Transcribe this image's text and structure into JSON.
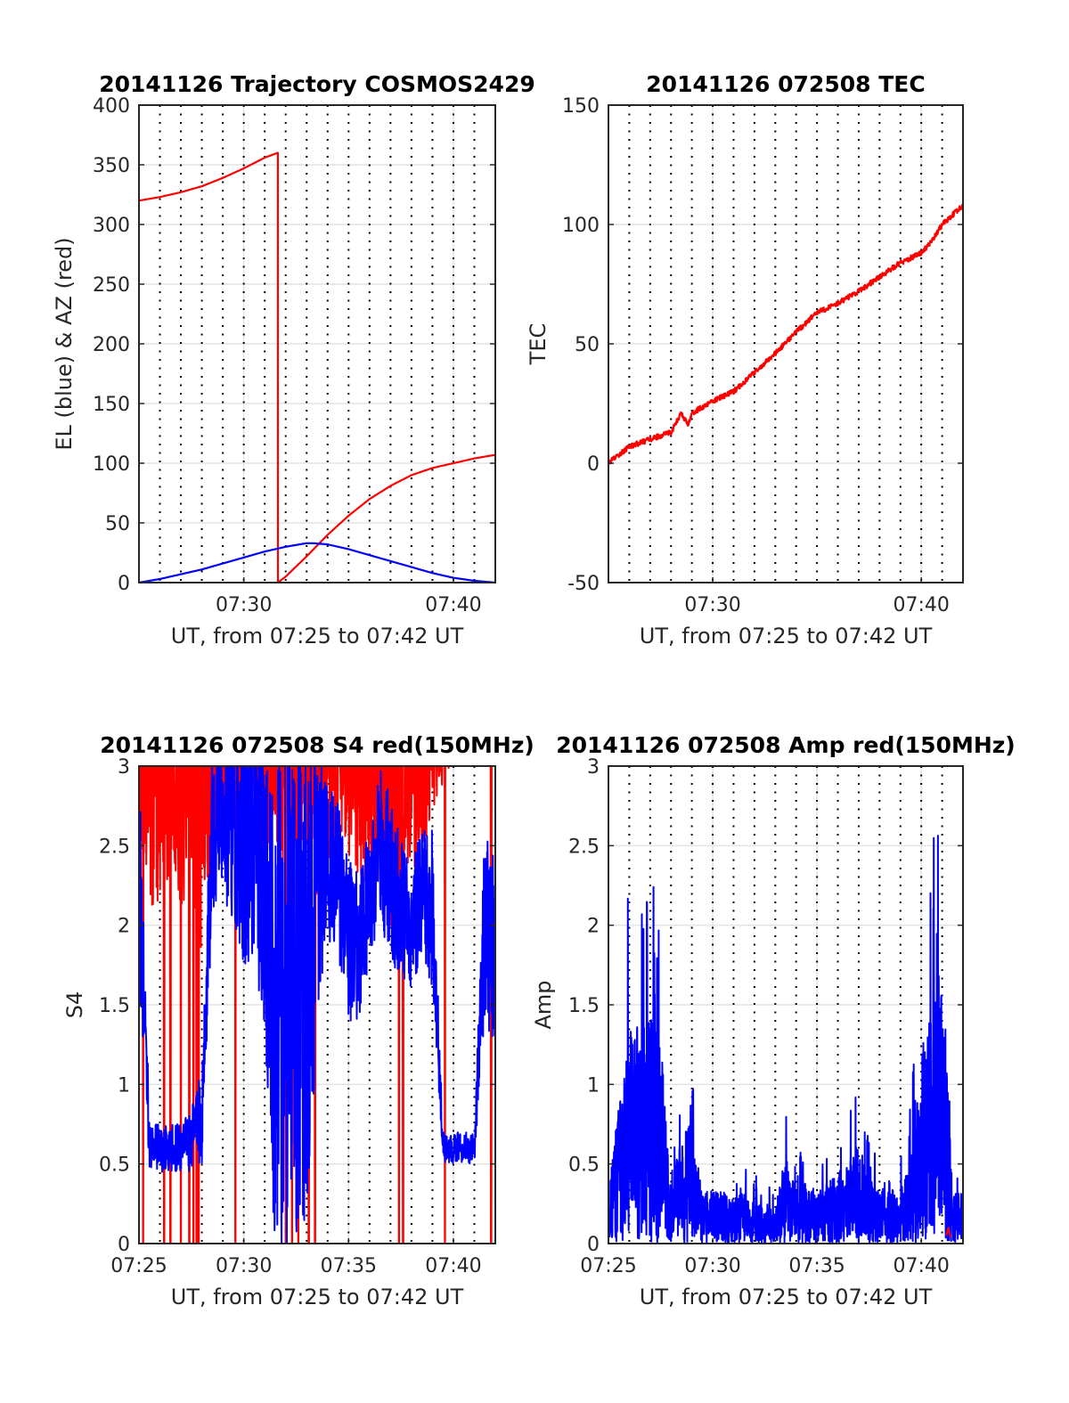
{
  "chart_data": [
    {
      "type": "line",
      "title": "20141126 Trajectory COSMOS2429",
      "xlabel": "UT, from 07:25 to 07:42 UT",
      "ylabel": "EL (blue) & AZ (red)",
      "xlim_minutes": [
        0,
        17
      ],
      "ylim": [
        0,
        400
      ],
      "xticks": [
        {
          "t": 5,
          "label": "07:30"
        },
        {
          "t": 15,
          "label": "07:40"
        }
      ],
      "yticks": [
        0,
        50,
        100,
        150,
        200,
        250,
        300,
        350,
        400
      ],
      "minute_dotted_grid": true,
      "series": [
        {
          "name": "AZ",
          "color": "#ff0000",
          "t": [
            0,
            1,
            2,
            3,
            4,
            5,
            6,
            6.62,
            6.63,
            7,
            8,
            9,
            10,
            11,
            12,
            13,
            14,
            15,
            16,
            17
          ],
          "values": [
            320,
            323,
            327,
            332,
            339,
            347,
            356,
            360,
            0,
            5,
            22,
            40,
            56,
            70,
            81,
            90,
            96,
            100,
            104,
            107
          ]
        },
        {
          "name": "EL",
          "color": "#0000ff",
          "t": [
            0,
            1,
            2,
            3,
            4,
            5,
            6,
            7,
            8,
            8.3,
            9,
            10,
            11,
            12,
            13,
            14,
            15,
            16,
            17
          ],
          "values": [
            0,
            3,
            7,
            11,
            16,
            21,
            26,
            30,
            33,
            33,
            32,
            28,
            23,
            18,
            13,
            8,
            4,
            1.5,
            0
          ]
        }
      ]
    },
    {
      "type": "line",
      "title": "20141126 072508 TEC",
      "xlabel": "UT, from 07:25 to 07:42 UT",
      "ylabel": "TEC",
      "xlim_minutes": [
        0,
        17
      ],
      "ylim": [
        -50,
        150
      ],
      "xticks": [
        {
          "t": 5,
          "label": "07:30"
        },
        {
          "t": 15,
          "label": "07:40"
        }
      ],
      "yticks": [
        -50,
        0,
        50,
        100,
        150
      ],
      "minute_dotted_grid": true,
      "series": [
        {
          "name": "TEC",
          "color": "#ff0000",
          "t": [
            0,
            1,
            2,
            3,
            3.5,
            3.8,
            4,
            5,
            6,
            7,
            8,
            9,
            10,
            11,
            12,
            13,
            14,
            15,
            15.5,
            16,
            17
          ],
          "values": [
            0,
            7,
            10,
            13,
            21,
            16,
            21,
            26,
            30,
            38,
            46,
            55,
            63,
            67,
            72,
            78,
            84,
            88,
            93,
            100,
            108
          ]
        }
      ]
    },
    {
      "type": "line",
      "title": "20141126 072508 S4 red(150MHz)",
      "xlabel": "UT, from 07:25 to 07:42 UT",
      "ylabel": "S4",
      "xlim_minutes": [
        0,
        17
      ],
      "ylim": [
        0,
        3
      ],
      "xticks": [
        {
          "t": 0,
          "label": "07:25"
        },
        {
          "t": 5,
          "label": "07:30"
        },
        {
          "t": 10,
          "label": "07:35"
        },
        {
          "t": 15,
          "label": "07:40"
        }
      ],
      "yticks": [
        0,
        0.5,
        1,
        1.5,
        2,
        2.5,
        3
      ],
      "minute_dotted_grid": true,
      "sample_step_minutes": 0.5,
      "series": [
        {
          "name": "red",
          "color": "#ff0000",
          "level": [
            3.3,
            3.0,
            2.9,
            3.2,
            3.0,
            3.1,
            2.6,
            3.2,
            3.0,
            3.3,
            3.2,
            3.4,
            3.1,
            3.2,
            3.1,
            3.3,
            3.0,
            2.9,
            3.2,
            3.4,
            3.3,
            3.2,
            3.0,
            3.1,
            2.9,
            2.8,
            3.2,
            3.0,
            3.3,
            3.4,
            3.6,
            3.5,
            3.6,
            3.7,
            3.6
          ],
          "spread": [
            0.8,
            0.9,
            1.0,
            0.8,
            0.9,
            0.9,
            0.8,
            0.7,
            0.6,
            0.6,
            0.6,
            0.6,
            0.7,
            0.7,
            0.8,
            0.8,
            0.8,
            0.8,
            0.8,
            0.9,
            0.9,
            0.9,
            0.8,
            0.8,
            0.9,
            0.9,
            0.8,
            0.8,
            0.6,
            0.6,
            0.5,
            0.5,
            0.5,
            0.6,
            0.6
          ],
          "dropouts": [
            0.2,
            1.2,
            1.5,
            2.0,
            2.4,
            2.6,
            2.75,
            2.85,
            4.6,
            7.0,
            7.3,
            7.6,
            8.1,
            8.4,
            12.4,
            12.6,
            14.6,
            16.8
          ]
        },
        {
          "name": "blue",
          "color": "#0000ff",
          "level": [
            2.4,
            0.6,
            0.6,
            0.6,
            0.6,
            0.65,
            0.8,
            2.6,
            2.7,
            2.6,
            2.5,
            2.6,
            2.2,
            1.5,
            1.5,
            1.5,
            1.8,
            2.3,
            2.4,
            2.3,
            1.9,
            1.9,
            2.2,
            2.5,
            2.3,
            2.1,
            2.0,
            2.2,
            2.1,
            0.6,
            0.6,
            0.6,
            0.6,
            2.0,
            1.8
          ],
          "spread": [
            0.8,
            0.15,
            0.15,
            0.15,
            0.15,
            0.2,
            0.3,
            0.5,
            0.5,
            0.6,
            0.8,
            0.8,
            0.9,
            1.6,
            1.6,
            1.6,
            1.6,
            1.0,
            0.5,
            0.5,
            0.5,
            0.5,
            0.4,
            0.5,
            0.5,
            0.5,
            0.4,
            0.4,
            0.5,
            0.1,
            0.1,
            0.1,
            0.1,
            0.6,
            0.6
          ]
        }
      ]
    },
    {
      "type": "line",
      "title": "20141126 072508 Amp red(150MHz)",
      "xlabel": "UT, from 07:25 to 07:42 UT",
      "ylabel": "Amp",
      "xlim_minutes": [
        0,
        17
      ],
      "ylim": [
        0,
        3
      ],
      "xticks": [
        {
          "t": 0,
          "label": "07:25"
        },
        {
          "t": 5,
          "label": "07:30"
        },
        {
          "t": 10,
          "label": "07:35"
        },
        {
          "t": 15,
          "label": "07:40"
        }
      ],
      "yticks": [
        0,
        0.5,
        1,
        1.5,
        2,
        2.5,
        3
      ],
      "minute_dotted_grid": true,
      "sample_step_minutes": 0.5,
      "series": [
        {
          "name": "blue",
          "color": "#0000ff",
          "level": [
            0.3,
            0.8,
            1.3,
            1.3,
            1.3,
            1.2,
            0.3,
            0.6,
            0.7,
            0.3,
            0.3,
            0.3,
            0.25,
            0.3,
            0.25,
            0.2,
            0.2,
            0.5,
            0.3,
            0.35,
            0.3,
            0.35,
            0.4,
            0.5,
            0.6,
            0.35,
            0.3,
            0.35,
            0.3,
            0.5,
            1.1,
            1.4,
            1.6,
            0.3,
            0.3
          ]
        },
        {
          "name": "red",
          "color": "#ff0000",
          "t": [
            16.2,
            16.3,
            16.4
          ],
          "values": [
            0.05,
            0.1,
            0.04
          ]
        }
      ]
    }
  ]
}
